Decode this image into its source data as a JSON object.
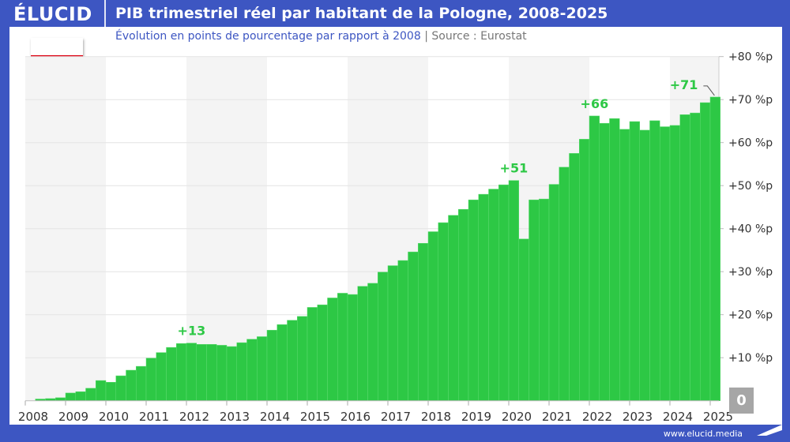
{
  "header": {
    "logo": "ÉLUCID",
    "title": "PIB trimestriel réel par habitant de la Pologne, 2008-2025"
  },
  "subtitle": {
    "text": "Évolution en points de pourcentage par rapport à 2008",
    "separator": "|",
    "source": "Source : Eurostat"
  },
  "flag": {
    "country": "Pologne",
    "colors": [
      "#ffffff",
      "#dc0010"
    ]
  },
  "zero_badge": "0",
  "footer": {
    "url": "www.elucid.media"
  },
  "colors": {
    "frame": "#3d56c2",
    "bar": "#2dc845",
    "stripe": "#f4f4f4"
  },
  "chart_data": {
    "type": "bar",
    "title": "PIB trimestriel réel par habitant de la Pologne, 2008-2025",
    "frequency": "quarterly",
    "x_tick_labels": [
      "2008",
      "2009",
      "2010",
      "2011",
      "2012",
      "2013",
      "2014",
      "2015",
      "2016",
      "2017",
      "2018",
      "2019",
      "2020",
      "2021",
      "2022",
      "2023",
      "2024",
      "2025"
    ],
    "y_tick_labels": [
      "+10 %p",
      "+20 %p",
      "+30 %p",
      "+40 %p",
      "+50 %p",
      "+60 %p",
      "+70 %p",
      "+80 %p"
    ],
    "ylim": [
      0,
      80
    ],
    "grid": true,
    "y_axis_side": "right",
    "start": "2008-Q1",
    "values": [
      0,
      0.4,
      0.5,
      0.7,
      1.8,
      2.1,
      2.9,
      4.7,
      4.3,
      5.8,
      7.1,
      8.0,
      9.9,
      11.2,
      12.4,
      13.3,
      13.4,
      13.1,
      13.1,
      12.9,
      12.6,
      13.5,
      14.3,
      14.9,
      16.4,
      17.7,
      18.7,
      19.6,
      21.7,
      22.3,
      23.9,
      25.0,
      24.7,
      26.6,
      27.3,
      29.9,
      31.4,
      32.6,
      34.6,
      36.6,
      39.3,
      41.4,
      43.1,
      44.5,
      46.7,
      48.0,
      49.2,
      50.2,
      51.2,
      37.6,
      46.7,
      46.9,
      50.3,
      54.3,
      57.5,
      60.8,
      66.2,
      64.5,
      65.6,
      63.1,
      64.9,
      62.9,
      65.1,
      63.7,
      64.0,
      66.5,
      66.9,
      69.3,
      70.6
    ],
    "annotations": [
      {
        "index": 16,
        "label": "+13"
      },
      {
        "index": 48,
        "label": "+51"
      },
      {
        "index": 56,
        "label": "+66"
      },
      {
        "index": 68,
        "label": "+71"
      }
    ]
  }
}
